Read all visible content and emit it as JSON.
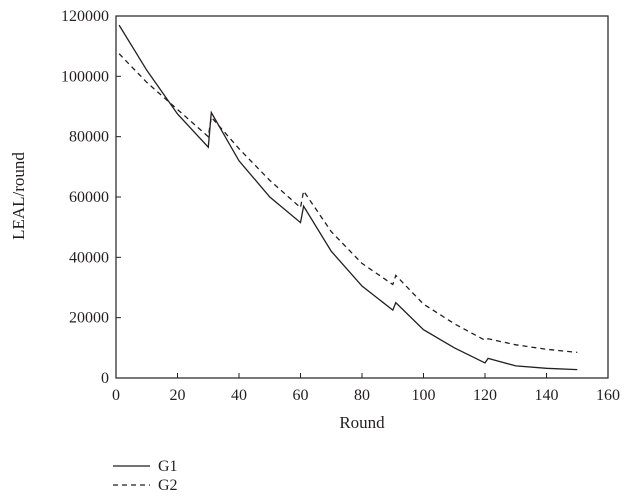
{
  "chart_data": {
    "type": "line",
    "title": "",
    "xlabel": "Round",
    "ylabel": "LEAL/round",
    "xlim": [
      0,
      160
    ],
    "ylim": [
      0,
      120000
    ],
    "xticks": [
      "0",
      "20",
      "40",
      "60",
      "80",
      "100",
      "120",
      "140",
      "160"
    ],
    "yticks": [
      "0",
      "20000",
      "40000",
      "60000",
      "80000",
      "100000",
      "120000"
    ],
    "grid": false,
    "legend_position": "bottom-left, below plot",
    "series": [
      {
        "name": "G1",
        "style": "solid",
        "color": "#231f20",
        "points": [
          [
            1,
            117000
          ],
          [
            10,
            102000
          ],
          [
            20,
            87500
          ],
          [
            30,
            76500
          ],
          [
            31,
            88000
          ],
          [
            40,
            72000
          ],
          [
            50,
            60000
          ],
          [
            60,
            51500
          ],
          [
            61,
            57000
          ],
          [
            70,
            42000
          ],
          [
            80,
            30500
          ],
          [
            90,
            22500
          ],
          [
            91,
            25000
          ],
          [
            100,
            16000
          ],
          [
            110,
            10000
          ],
          [
            120,
            5000
          ],
          [
            121,
            6500
          ],
          [
            130,
            4000
          ],
          [
            140,
            3200
          ],
          [
            150,
            2800
          ]
        ]
      },
      {
        "name": "G2",
        "style": "dashed",
        "color": "#231f20",
        "points": [
          [
            1,
            107500
          ],
          [
            10,
            98000
          ],
          [
            20,
            89000
          ],
          [
            30,
            80000
          ],
          [
            31,
            86500
          ],
          [
            40,
            76000
          ],
          [
            50,
            65500
          ],
          [
            60,
            56500
          ],
          [
            61,
            62000
          ],
          [
            70,
            48500
          ],
          [
            80,
            38000
          ],
          [
            90,
            31000
          ],
          [
            91,
            34000
          ],
          [
            100,
            24500
          ],
          [
            110,
            18000
          ],
          [
            120,
            12500
          ],
          [
            121,
            13000
          ],
          [
            130,
            11000
          ],
          [
            140,
            9500
          ],
          [
            150,
            8500
          ]
        ]
      }
    ]
  }
}
